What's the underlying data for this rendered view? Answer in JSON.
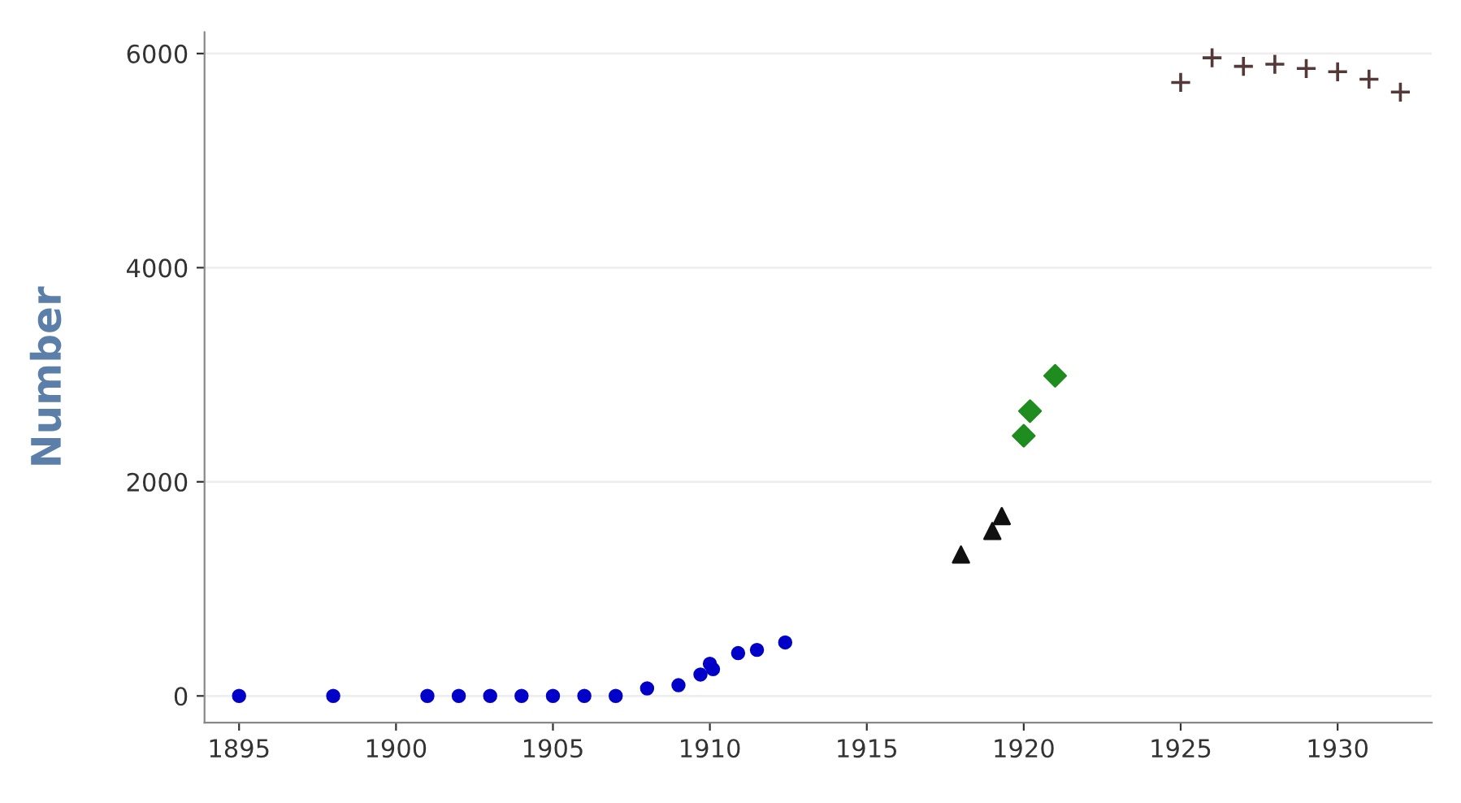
{
  "chart_data": {
    "type": "scatter",
    "ylabel": "Number",
    "xlim": [
      1893.9,
      1933
    ],
    "ylim": [
      -250,
      6200
    ],
    "xticks": [
      1895,
      1900,
      1905,
      1910,
      1915,
      1920,
      1925,
      1930
    ],
    "yticks": [
      0,
      2000,
      4000,
      6000
    ],
    "grid": "y",
    "series": [
      {
        "color": "#0000c8",
        "marker": "circle",
        "x": [
          1895,
          1898,
          1901,
          1902,
          1903,
          1904,
          1905,
          1906,
          1907,
          1908,
          1909,
          1909.7,
          1910,
          1910.1,
          1910.9,
          1911.5,
          1912.4
        ],
        "values": [
          0,
          0,
          0,
          0,
          0,
          0,
          0,
          0,
          0,
          70,
          100,
          200,
          300,
          250,
          400,
          430,
          500
        ]
      },
      {
        "color": "#111111",
        "marker": "triangle",
        "x": [
          1918,
          1919,
          1919.3
        ],
        "values": [
          1320,
          1540,
          1680
        ]
      },
      {
        "color": "#1e8c1e",
        "marker": "diamond",
        "x": [
          1920,
          1920.2,
          1921
        ],
        "values": [
          2430,
          2660,
          2990
        ]
      },
      {
        "color": "#553838",
        "marker": "cross",
        "x": [
          1925,
          1926,
          1927,
          1928,
          1929,
          1930,
          1931,
          1932
        ],
        "values": [
          5730,
          5960,
          5880,
          5900,
          5860,
          5830,
          5760,
          5640
        ]
      }
    ]
  }
}
